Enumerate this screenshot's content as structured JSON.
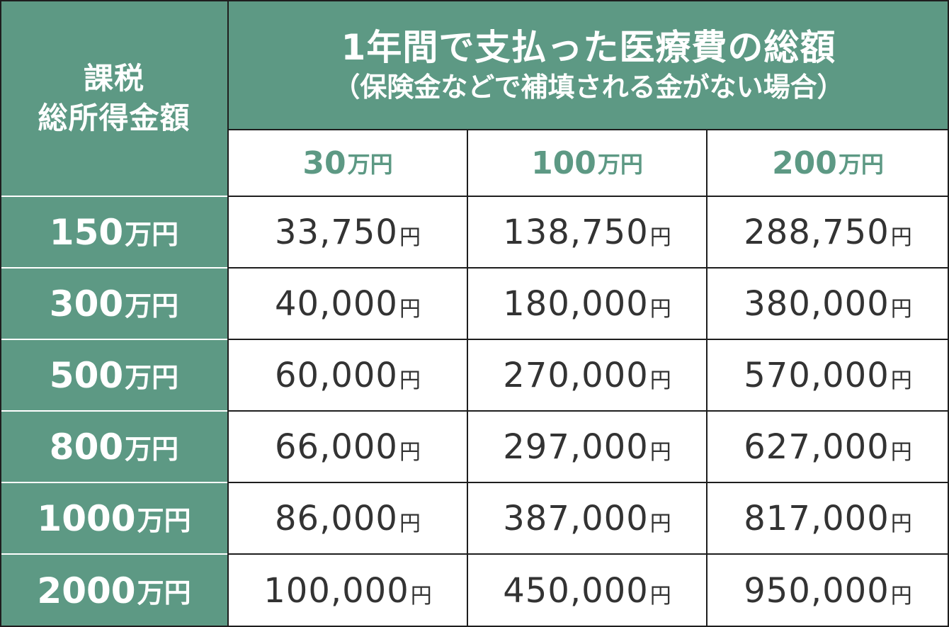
{
  "header": {
    "row_label_line1": "課税",
    "row_label_line2": "総所得金額",
    "title_line1": "1年間で支払った医療費の総額",
    "title_line2": "（保険金などで補填される金がない場合）"
  },
  "unit": "万円",
  "yen": "円",
  "columns": [
    {
      "amount": "30"
    },
    {
      "amount": "100"
    },
    {
      "amount": "200"
    }
  ],
  "rows": [
    {
      "income": "150",
      "values": [
        "33,750",
        "138,750",
        "288,750"
      ]
    },
    {
      "income": "300",
      "values": [
        "40,000",
        "180,000",
        "380,000"
      ]
    },
    {
      "income": "500",
      "values": [
        "60,000",
        "270,000",
        "570,000"
      ]
    },
    {
      "income": "800",
      "values": [
        "66,000",
        "297,000",
        "627,000"
      ]
    },
    {
      "income": "1000",
      "values": [
        "86,000",
        "387,000",
        "817,000"
      ]
    },
    {
      "income": "2000",
      "values": [
        "100,000",
        "450,000",
        "950,000"
      ]
    }
  ]
}
